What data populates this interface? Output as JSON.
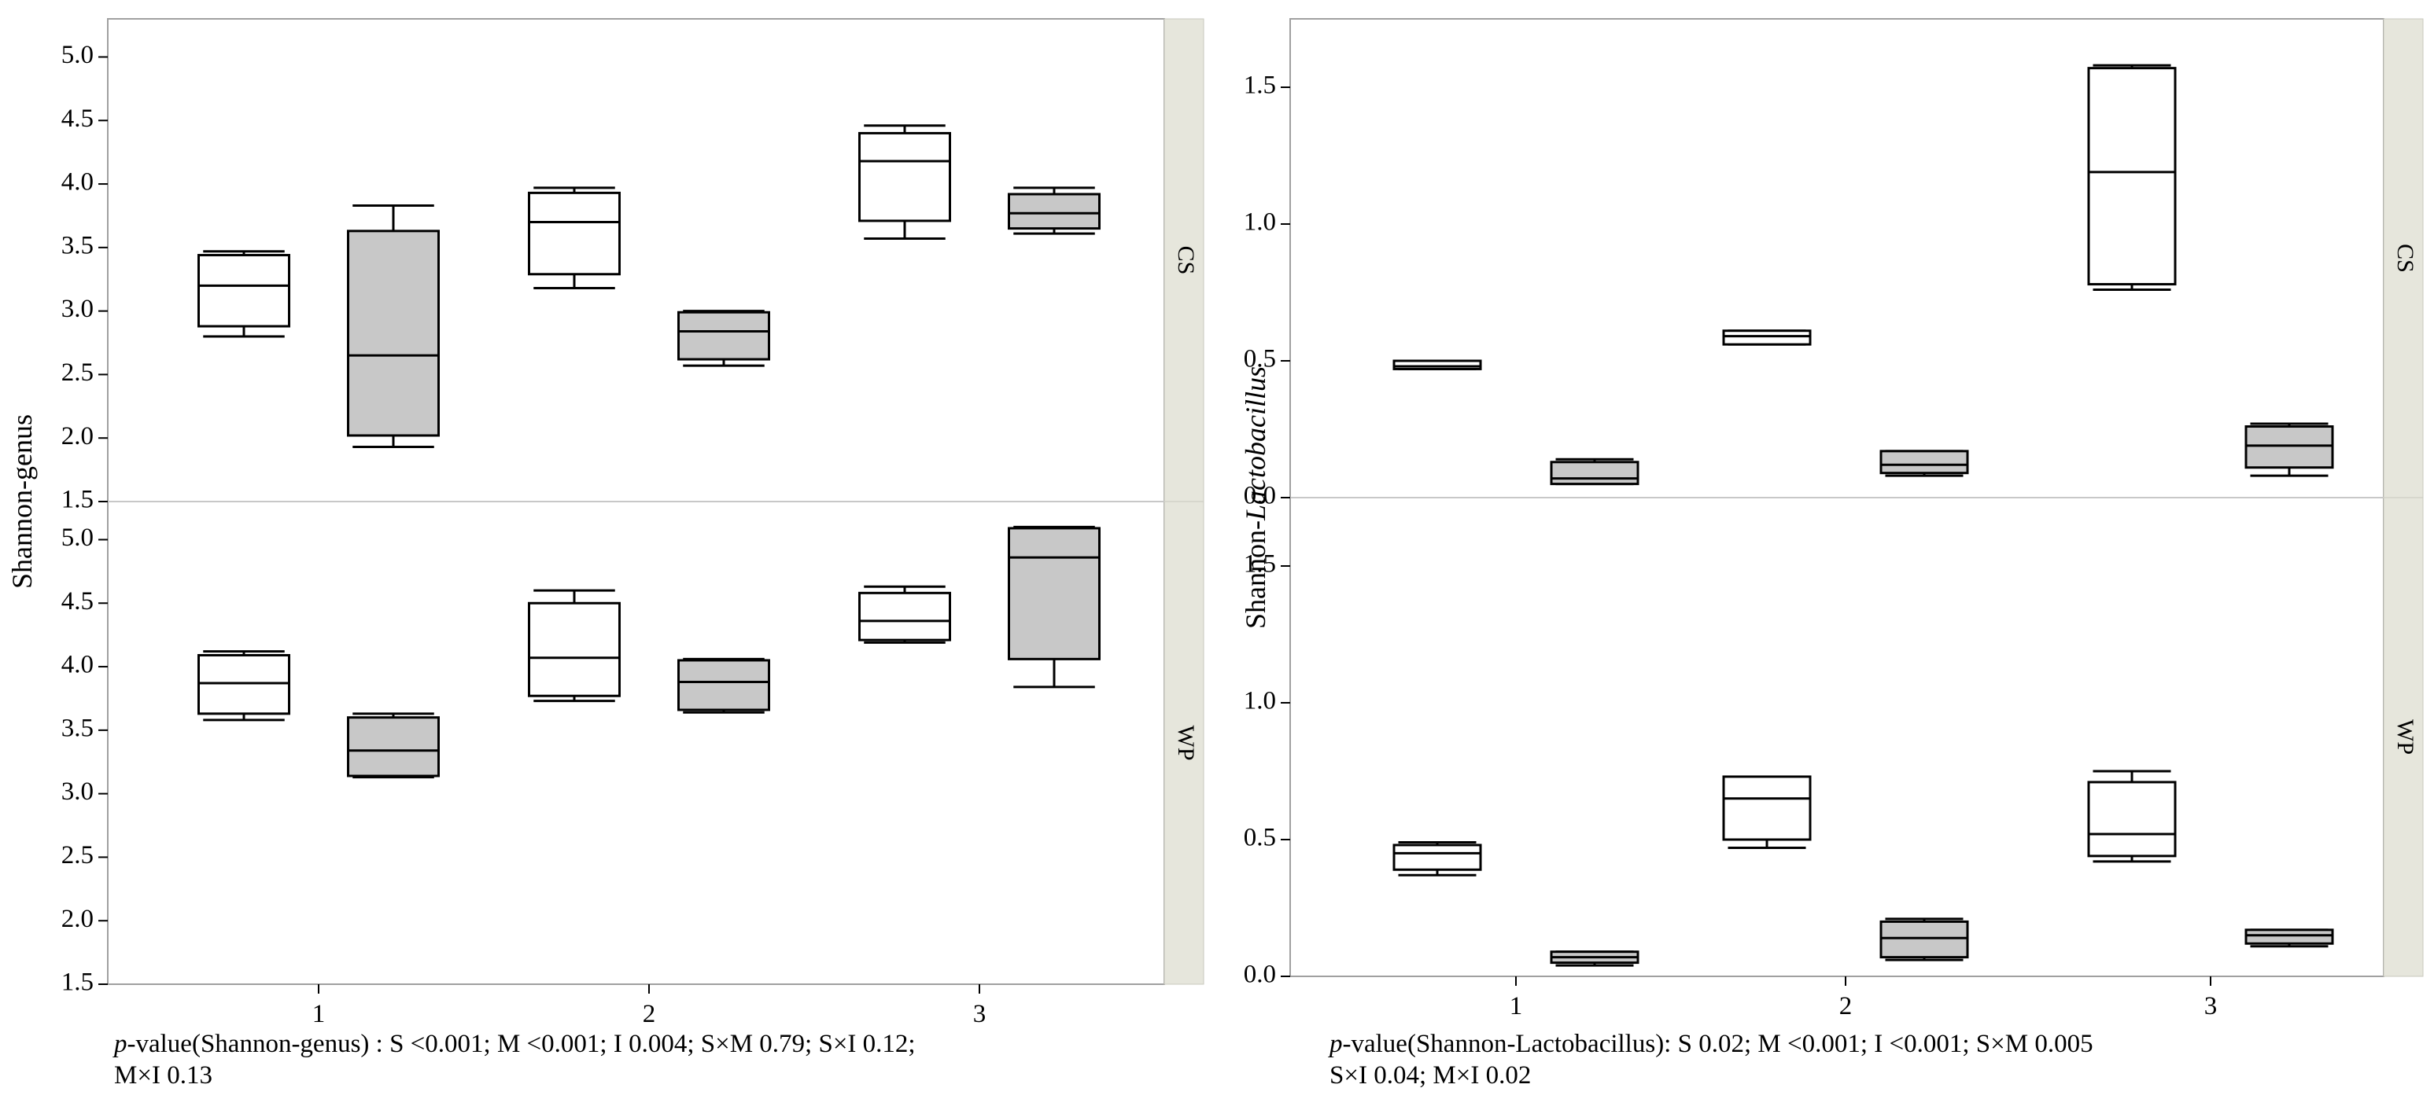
{
  "chart_data": [
    {
      "type": "boxplot",
      "ylabel": "Shannon-genus",
      "ylabel_prefix": "Shannon-",
      "ylabel_italic": "genus",
      "categories": [
        "1",
        "2",
        "3"
      ],
      "ylim": [
        1.5,
        5.3
      ],
      "yticks": [
        "1.5",
        "2.0",
        "2.5",
        "3.0",
        "3.5",
        "4.0",
        "4.5",
        "5.0"
      ],
      "legend": "none",
      "colors": {
        "series_1": "#ffffff",
        "series_2": "#c8c8c8"
      },
      "panels": [
        {
          "strip_label": "CS",
          "series": [
            {
              "name": "series_1",
              "boxes": [
                {
                  "category": "1",
                  "min": 2.8,
                  "q1": 2.88,
                  "median": 3.2,
                  "q3": 3.44,
                  "max": 3.47
                },
                {
                  "category": "2",
                  "min": 3.18,
                  "q1": 3.29,
                  "median": 3.7,
                  "q3": 3.93,
                  "max": 3.97
                },
                {
                  "category": "3",
                  "min": 3.57,
                  "q1": 3.71,
                  "median": 4.18,
                  "q3": 4.4,
                  "max": 4.46
                }
              ]
            },
            {
              "name": "series_2",
              "boxes": [
                {
                  "category": "1",
                  "min": 1.93,
                  "q1": 2.02,
                  "median": 2.65,
                  "q3": 3.63,
                  "max": 3.83
                },
                {
                  "category": "2",
                  "min": 2.57,
                  "q1": 2.62,
                  "median": 2.84,
                  "q3": 2.99,
                  "max": 3.0
                },
                {
                  "category": "3",
                  "min": 3.61,
                  "q1": 3.65,
                  "median": 3.77,
                  "q3": 3.92,
                  "max": 3.97
                }
              ]
            }
          ]
        },
        {
          "strip_label": "WP",
          "series": [
            {
              "name": "series_1",
              "boxes": [
                {
                  "category": "1",
                  "min": 3.58,
                  "q1": 3.63,
                  "median": 3.87,
                  "q3": 4.09,
                  "max": 4.12
                },
                {
                  "category": "2",
                  "min": 3.73,
                  "q1": 3.77,
                  "median": 4.07,
                  "q3": 4.5,
                  "max": 4.6
                },
                {
                  "category": "3",
                  "min": 4.19,
                  "q1": 4.21,
                  "median": 4.36,
                  "q3": 4.58,
                  "max": 4.63
                }
              ]
            },
            {
              "name": "series_2",
              "boxes": [
                {
                  "category": "1",
                  "min": 3.13,
                  "q1": 3.14,
                  "median": 3.34,
                  "q3": 3.6,
                  "max": 3.63
                },
                {
                  "category": "2",
                  "min": 3.64,
                  "q1": 3.66,
                  "median": 3.88,
                  "q3": 4.05,
                  "max": 4.06
                },
                {
                  "category": "3",
                  "min": 3.84,
                  "q1": 4.06,
                  "median": 4.86,
                  "q3": 5.09,
                  "max": 5.1
                }
              ]
            }
          ]
        }
      ],
      "footnote_p": "p",
      "footnote_text": "-value(Shannon-genus) : S <0.001; M <0.001; I 0.004; S×M 0.79; S×I 0.12;",
      "footnote_text2": "M×I 0.13"
    },
    {
      "type": "boxplot",
      "ylabel": "Shannon-Lactobacillus",
      "ylabel_prefix": "Shannon-",
      "ylabel_italic": "Lactobacillus",
      "categories": [
        "1",
        "2",
        "3"
      ],
      "ylim": [
        0.0,
        1.75
      ],
      "yticks": [
        "0.0",
        "0.5",
        "1.0",
        "1.5"
      ],
      "legend": "none",
      "colors": {
        "series_1": "#ffffff",
        "series_2": "#c8c8c8"
      },
      "panels": [
        {
          "strip_label": "CS",
          "series": [
            {
              "name": "series_1",
              "boxes": [
                {
                  "category": "1",
                  "min": 0.47,
                  "q1": 0.47,
                  "median": 0.48,
                  "q3": 0.5,
                  "max": 0.5
                },
                {
                  "category": "2",
                  "min": 0.56,
                  "q1": 0.56,
                  "median": 0.59,
                  "q3": 0.61,
                  "max": 0.61
                },
                {
                  "category": "3",
                  "min": 0.76,
                  "q1": 0.78,
                  "median": 1.19,
                  "q3": 1.57,
                  "max": 1.58
                }
              ]
            },
            {
              "name": "series_2",
              "boxes": [
                {
                  "category": "1",
                  "min": 0.05,
                  "q1": 0.05,
                  "median": 0.07,
                  "q3": 0.13,
                  "max": 0.14
                },
                {
                  "category": "2",
                  "min": 0.08,
                  "q1": 0.09,
                  "median": 0.12,
                  "q3": 0.17,
                  "max": 0.17
                },
                {
                  "category": "3",
                  "min": 0.08,
                  "q1": 0.11,
                  "median": 0.19,
                  "q3": 0.26,
                  "max": 0.27
                }
              ]
            }
          ]
        },
        {
          "strip_label": "WP",
          "series": [
            {
              "name": "series_1",
              "boxes": [
                {
                  "category": "1",
                  "min": 0.37,
                  "q1": 0.39,
                  "median": 0.45,
                  "q3": 0.48,
                  "max": 0.49
                },
                {
                  "category": "2",
                  "min": 0.47,
                  "q1": 0.5,
                  "median": 0.65,
                  "q3": 0.73,
                  "max": 0.73
                },
                {
                  "category": "3",
                  "min": 0.42,
                  "q1": 0.44,
                  "median": 0.52,
                  "q3": 0.71,
                  "max": 0.75
                }
              ]
            },
            {
              "name": "series_2",
              "boxes": [
                {
                  "category": "1",
                  "min": 0.04,
                  "q1": 0.05,
                  "median": 0.07,
                  "q3": 0.09,
                  "max": 0.09
                },
                {
                  "category": "2",
                  "min": 0.06,
                  "q1": 0.07,
                  "median": 0.14,
                  "q3": 0.2,
                  "max": 0.21
                },
                {
                  "category": "3",
                  "min": 0.11,
                  "q1": 0.12,
                  "median": 0.15,
                  "q3": 0.17,
                  "max": 0.17
                }
              ]
            }
          ]
        }
      ],
      "footnote_p": "p",
      "footnote_text": "-value(Shannon-Lactobacillus): S 0.02; M <0.001; I <0.001; S×M 0.005",
      "footnote_text2": "S×I 0.04; M×I 0.02"
    }
  ]
}
